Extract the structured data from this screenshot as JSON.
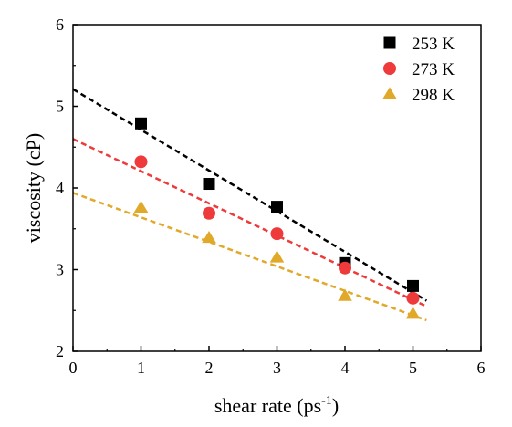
{
  "chart_data": {
    "type": "scatter",
    "title": "",
    "xlabel": "shear rate (ps",
    "xlabel_superscript": "-1",
    "xlabel_suffix": ")",
    "ylabel": "viscosity (cP)",
    "xlim": [
      0,
      6
    ],
    "ylim": [
      2,
      6
    ],
    "xticks": [
      0,
      1,
      2,
      3,
      4,
      5,
      6
    ],
    "yticks": [
      2,
      3,
      4,
      5,
      6
    ],
    "grid": false,
    "legend_position": "top-right",
    "series": [
      {
        "name": "253 K",
        "marker": "square",
        "color": "#000000",
        "points": [
          [
            1,
            4.79
          ],
          [
            2,
            4.05
          ],
          [
            3,
            3.77
          ],
          [
            4,
            3.08
          ],
          [
            5,
            2.8
          ]
        ],
        "fit": {
          "x0": 0,
          "y0": 5.21,
          "x1": 5.2,
          "y1": 2.62
        }
      },
      {
        "name": "273 K",
        "marker": "circle",
        "color": "#ee3a3a",
        "points": [
          [
            1,
            4.32
          ],
          [
            2,
            3.69
          ],
          [
            3,
            3.44
          ],
          [
            4,
            3.02
          ],
          [
            5,
            2.65
          ]
        ],
        "fit": {
          "x0": 0,
          "y0": 4.6,
          "x1": 5.2,
          "y1": 2.55
        }
      },
      {
        "name": "298 K",
        "marker": "triangle",
        "color": "#e0a92a",
        "points": [
          [
            1,
            3.76
          ],
          [
            2,
            3.39
          ],
          [
            3,
            3.15
          ],
          [
            4,
            2.68
          ],
          [
            5,
            2.46
          ]
        ],
        "fit": {
          "x0": 0,
          "y0": 3.94,
          "x1": 5.2,
          "y1": 2.38
        }
      }
    ]
  }
}
